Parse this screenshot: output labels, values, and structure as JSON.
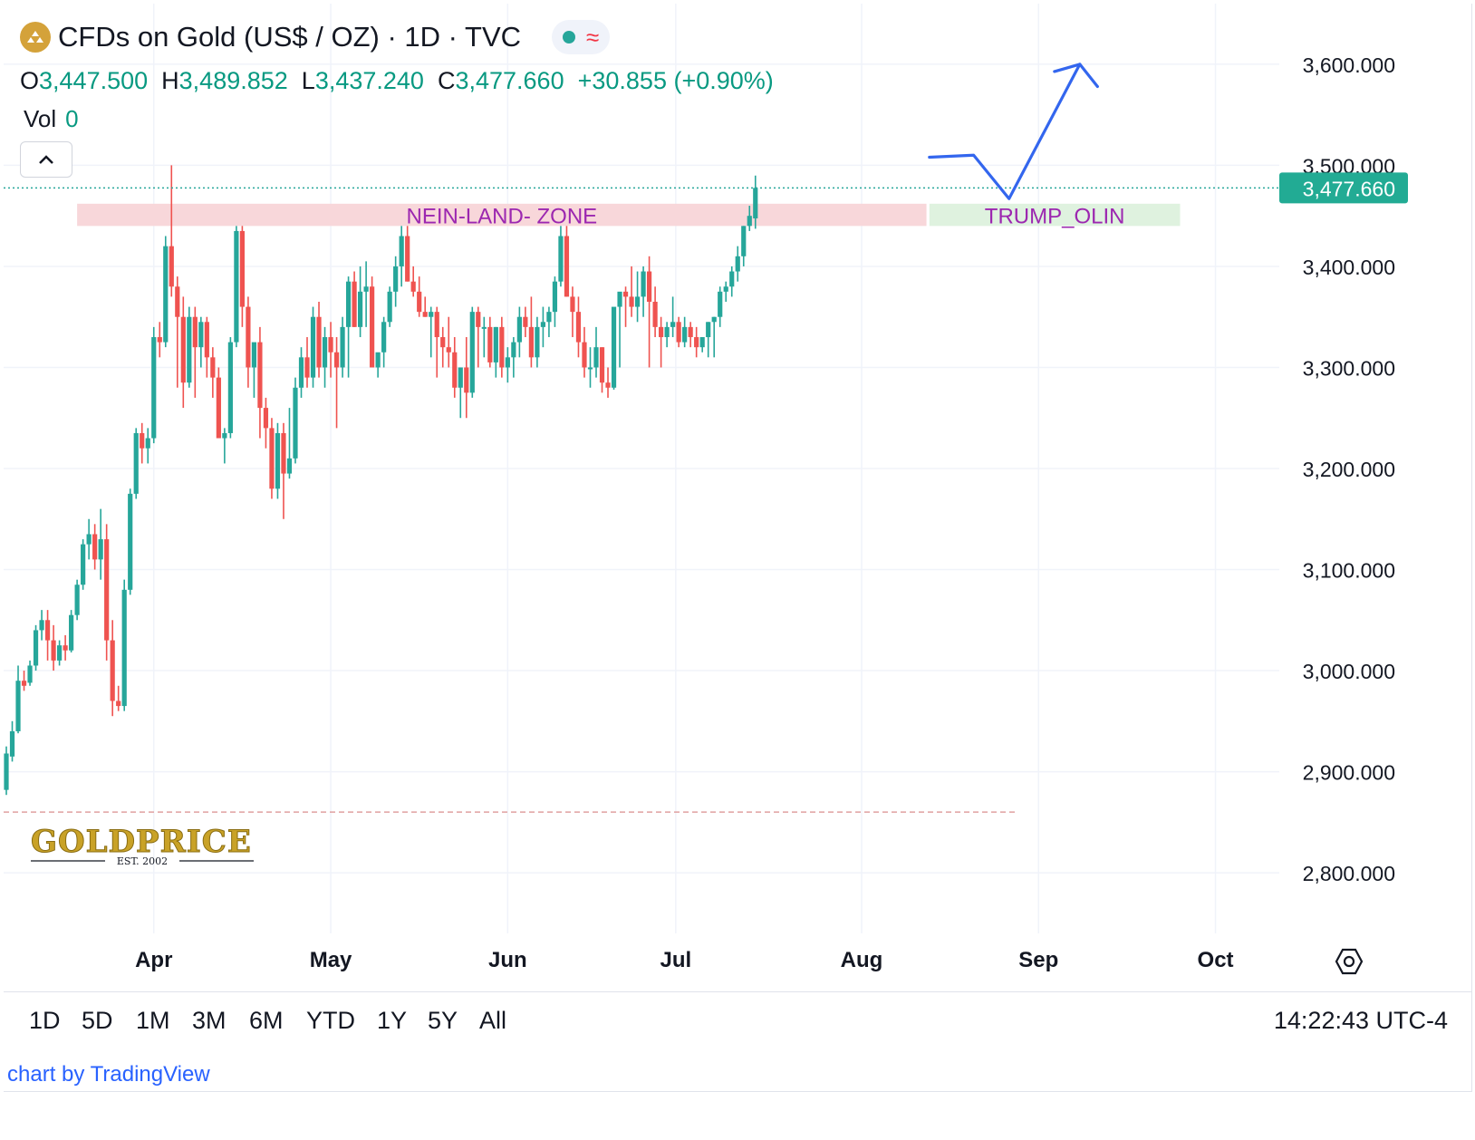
{
  "header": {
    "title": "CFDs on Gold (US$ / OZ) · 1D · TVC",
    "ohlc": {
      "o_label": "O",
      "o": "3,447.500",
      "h_label": "H",
      "h": "3,489.852",
      "l_label": "L",
      "l": "3,437.240",
      "c_label": "C",
      "c": "3,477.660",
      "change": "+30.855 (+0.90%)"
    },
    "vol_label": "Vol",
    "vol_value": "0",
    "status_icon": "approx-icon"
  },
  "colors": {
    "up": "#26a69a",
    "down": "#ef5350",
    "accent_blue": "#2962ff",
    "zone_red": "#f8d7da",
    "zone_green": "#dff2df",
    "zone_text": "#9c27b0"
  },
  "annotations": {
    "red_zone": "NEIN-LAND- ZONE",
    "green_zone": "TRUMP_OLIN"
  },
  "price_label": "3,477.660",
  "watermark": {
    "brand": "GOLDPRICE",
    "est": "EST. 2002"
  },
  "ranges": [
    "1D",
    "5D",
    "1M",
    "3M",
    "6M",
    "YTD",
    "1Y",
    "5Y",
    "All"
  ],
  "clock": "14:22:43 UTC-4",
  "credit": "chart by TradingView",
  "chart_data": {
    "type": "candlestick",
    "title": "CFDs on Gold (US$ / OZ) · 1D · TVC",
    "y_ticks": [
      "3,600.000",
      "3,500.000",
      "3,400.000",
      "3,300.000",
      "3,200.000",
      "3,100.000",
      "3,000.000",
      "2,900.000",
      "2,800.000"
    ],
    "y_tick_values": [
      3600,
      3500,
      3400,
      3300,
      3200,
      3100,
      3000,
      2900,
      2800
    ],
    "ylim": [
      2740,
      3660
    ],
    "x_labels": [
      "Apr",
      "May",
      "Jun",
      "Jul",
      "Aug",
      "Sep",
      "Oct"
    ],
    "x_label_bars": [
      25,
      55,
      85,
      113.5,
      145,
      175,
      205
    ],
    "grid": true,
    "bars": [
      [
        2882,
        2925,
        2877,
        2918
      ],
      [
        2915,
        2950,
        2910,
        2940
      ],
      [
        2940,
        3005,
        2938,
        2990
      ],
      [
        2990,
        3000,
        2980,
        2985
      ],
      [
        2988,
        3010,
        2985,
        3005
      ],
      [
        3005,
        3045,
        3000,
        3040
      ],
      [
        3040,
        3060,
        3030,
        3050
      ],
      [
        3050,
        3060,
        3010,
        3030
      ],
      [
        3030,
        3045,
        3000,
        3010
      ],
      [
        3010,
        3030,
        3005,
        3025
      ],
      [
        3025,
        3035,
        3010,
        3020
      ],
      [
        3020,
        3060,
        3018,
        3055
      ],
      [
        3055,
        3090,
        3050,
        3085
      ],
      [
        3085,
        3130,
        3080,
        3125
      ],
      [
        3125,
        3150,
        3110,
        3135
      ],
      [
        3135,
        3145,
        3100,
        3110
      ],
      [
        3110,
        3160,
        3090,
        3130
      ],
      [
        3130,
        3145,
        3010,
        3030
      ],
      [
        3030,
        3050,
        2955,
        2970
      ],
      [
        2970,
        2985,
        2960,
        2965
      ],
      [
        2965,
        3090,
        2960,
        3080
      ],
      [
        3080,
        3180,
        3075,
        3175
      ],
      [
        3175,
        3240,
        3170,
        3235
      ],
      [
        3235,
        3245,
        3205,
        3220
      ],
      [
        3220,
        3240,
        3205,
        3230
      ],
      [
        3230,
        3340,
        3225,
        3330
      ],
      [
        3330,
        3345,
        3310,
        3325
      ],
      [
        3325,
        3430,
        3320,
        3420
      ],
      [
        3420,
        3500,
        3370,
        3380
      ],
      [
        3380,
        3390,
        3280,
        3350
      ],
      [
        3350,
        3370,
        3260,
        3285
      ],
      [
        3285,
        3360,
        3280,
        3350
      ],
      [
        3350,
        3360,
        3270,
        3320
      ],
      [
        3320,
        3350,
        3300,
        3345
      ],
      [
        3345,
        3350,
        3290,
        3310
      ],
      [
        3310,
        3320,
        3270,
        3290
      ],
      [
        3290,
        3300,
        3240,
        3230
      ],
      [
        3230,
        3240,
        3205,
        3235
      ],
      [
        3235,
        3330,
        3230,
        3325
      ],
      [
        3325,
        3440,
        3320,
        3435
      ],
      [
        3435,
        3440,
        3340,
        3360
      ],
      [
        3360,
        3370,
        3280,
        3300
      ],
      [
        3300,
        3310,
        3270,
        3325
      ],
      [
        3325,
        3340,
        3230,
        3260
      ],
      [
        3260,
        3270,
        3220,
        3240
      ],
      [
        3240,
        3250,
        3170,
        3180
      ],
      [
        3180,
        3245,
        3170,
        3235
      ],
      [
        3235,
        3245,
        3150,
        3195
      ],
      [
        3195,
        3260,
        3190,
        3210
      ],
      [
        3210,
        3290,
        3205,
        3280
      ],
      [
        3280,
        3320,
        3270,
        3310
      ],
      [
        3310,
        3330,
        3280,
        3290
      ],
      [
        3290,
        3360,
        3280,
        3350
      ],
      [
        3350,
        3365,
        3290,
        3300
      ],
      [
        3300,
        3340,
        3280,
        3330
      ],
      [
        3330,
        3345,
        3290,
        3315
      ],
      [
        3315,
        3330,
        3240,
        3300
      ],
      [
        3300,
        3350,
        3290,
        3340
      ],
      [
        3340,
        3390,
        3290,
        3385
      ],
      [
        3385,
        3395,
        3340,
        3340
      ],
      [
        3340,
        3400,
        3330,
        3375
      ],
      [
        3375,
        3405,
        3340,
        3380
      ],
      [
        3380,
        3390,
        3330,
        3300
      ],
      [
        3300,
        3310,
        3290,
        3315
      ],
      [
        3315,
        3350,
        3300,
        3345
      ],
      [
        3345,
        3380,
        3340,
        3375
      ],
      [
        3375,
        3410,
        3360,
        3400
      ],
      [
        3400,
        3440,
        3380,
        3430
      ],
      [
        3430,
        3440,
        3385,
        3385
      ],
      [
        3385,
        3400,
        3370,
        3375
      ],
      [
        3375,
        3390,
        3350,
        3355
      ],
      [
        3355,
        3370,
        3350,
        3350
      ],
      [
        3350,
        3360,
        3310,
        3355
      ],
      [
        3355,
        3360,
        3290,
        3330
      ],
      [
        3330,
        3340,
        3300,
        3320
      ],
      [
        3320,
        3350,
        3300,
        3315
      ],
      [
        3315,
        3330,
        3270,
        3280
      ],
      [
        3280,
        3300,
        3250,
        3300
      ],
      [
        3300,
        3330,
        3250,
        3275
      ],
      [
        3275,
        3360,
        3270,
        3355
      ],
      [
        3355,
        3360,
        3300,
        3340
      ],
      [
        3340,
        3350,
        3310,
        3340
      ],
      [
        3340,
        3350,
        3300,
        3305
      ],
      [
        3305,
        3340,
        3290,
        3340
      ],
      [
        3340,
        3350,
        3290,
        3300
      ],
      [
        3300,
        3320,
        3285,
        3310
      ],
      [
        3310,
        3330,
        3290,
        3325
      ],
      [
        3325,
        3360,
        3310,
        3350
      ],
      [
        3350,
        3360,
        3330,
        3340
      ],
      [
        3340,
        3370,
        3300,
        3310
      ],
      [
        3310,
        3350,
        3300,
        3340
      ],
      [
        3340,
        3360,
        3320,
        3345
      ],
      [
        3345,
        3360,
        3330,
        3355
      ],
      [
        3355,
        3390,
        3340,
        3385
      ],
      [
        3385,
        3440,
        3380,
        3430
      ],
      [
        3430,
        3440,
        3370,
        3370
      ],
      [
        3370,
        3380,
        3330,
        3355
      ],
      [
        3355,
        3370,
        3310,
        3325
      ],
      [
        3325,
        3340,
        3290,
        3300
      ],
      [
        3300,
        3320,
        3280,
        3300
      ],
      [
        3300,
        3340,
        3290,
        3320
      ],
      [
        3320,
        3320,
        3275,
        3285
      ],
      [
        3285,
        3300,
        3270,
        3280
      ],
      [
        3280,
        3320,
        3278,
        3360
      ],
      [
        3360,
        3370,
        3300,
        3375
      ],
      [
        3375,
        3380,
        3340,
        3370
      ],
      [
        3370,
        3400,
        3350,
        3360
      ],
      [
        3360,
        3395,
        3345,
        3370
      ],
      [
        3370,
        3400,
        3350,
        3395
      ],
      [
        3395,
        3410,
        3300,
        3365
      ],
      [
        3365,
        3380,
        3330,
        3340
      ],
      [
        3340,
        3350,
        3300,
        3330
      ],
      [
        3330,
        3345,
        3320,
        3340
      ],
      [
        3340,
        3370,
        3330,
        3345
      ],
      [
        3345,
        3350,
        3320,
        3325
      ],
      [
        3325,
        3350,
        3320,
        3340
      ],
      [
        3340,
        3345,
        3320,
        3330
      ],
      [
        3330,
        3340,
        3310,
        3320
      ],
      [
        3320,
        3330,
        3315,
        3330
      ],
      [
        3330,
        3345,
        3310,
        3345
      ],
      [
        3345,
        3350,
        3310,
        3350
      ],
      [
        3350,
        3380,
        3340,
        3375
      ],
      [
        3375,
        3385,
        3365,
        3380
      ],
      [
        3380,
        3400,
        3370,
        3395
      ],
      [
        3395,
        3420,
        3385,
        3410
      ],
      [
        3410,
        3440,
        3400,
        3440
      ],
      [
        3440,
        3460,
        3435,
        3450
      ],
      [
        3447.5,
        3489.852,
        3437.24,
        3477.66
      ]
    ],
    "last_close": 3477.66,
    "zones": [
      {
        "label": "NEIN-LAND- ZONE",
        "from_bar": 12,
        "to_bar": 156,
        "y_low": 3440,
        "y_high": 3462
      },
      {
        "label": "TRUMP_OLIN",
        "from_bar": 156.5,
        "to_bar": 199,
        "y_low": 3440,
        "y_high": 3462
      }
    ],
    "drawing_path": [
      [
        156.5,
        3508
      ],
      [
        164,
        3510
      ],
      [
        170,
        3467
      ],
      [
        182,
        3600
      ],
      [
        185,
        3578
      ]
    ],
    "dashed_level": 2860
  }
}
